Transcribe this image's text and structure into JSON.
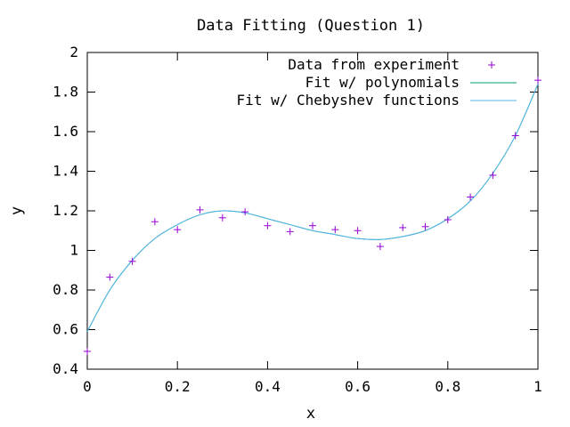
{
  "chart_data": {
    "type": "scatter",
    "title": "Data Fitting (Question 1)",
    "xlabel": "x",
    "ylabel": "y",
    "xlim": [
      0,
      1
    ],
    "ylim": [
      0.4,
      2
    ],
    "x_ticks": [
      0,
      0.2,
      0.4,
      0.6,
      0.8,
      1
    ],
    "x_tick_labels": [
      "0",
      "0.2",
      "0.4",
      "0.6",
      "0.8",
      "1"
    ],
    "y_ticks": [
      0.4,
      0.6,
      0.8,
      1.0,
      1.2,
      1.4,
      1.6,
      1.8,
      2.0
    ],
    "y_tick_labels": [
      "0.4",
      "0.6",
      "0.8",
      "1",
      "1.2",
      "1.4",
      "1.6",
      "1.8",
      "2"
    ],
    "grid": false,
    "legend_position": "top-right",
    "series": [
      {
        "name": "Data from experiment",
        "kind": "points",
        "marker": "plus",
        "color": "#9400d3",
        "x": [
          0,
          0.05,
          0.1,
          0.15,
          0.2,
          0.25,
          0.3,
          0.35,
          0.4,
          0.45,
          0.5,
          0.55,
          0.6,
          0.65,
          0.7,
          0.75,
          0.8,
          0.85,
          0.9,
          0.95,
          1.0
        ],
        "y": [
          0.49,
          0.865,
          0.945,
          1.145,
          1.105,
          1.205,
          1.165,
          1.195,
          1.125,
          1.095,
          1.125,
          1.105,
          1.1,
          1.02,
          1.115,
          1.12,
          1.155,
          1.27,
          1.38,
          1.58,
          1.86
        ]
      },
      {
        "name": "Fit w/ polynomials",
        "kind": "line",
        "color": "#009e73",
        "x": [
          0,
          0.05,
          0.1,
          0.15,
          0.2,
          0.25,
          0.3,
          0.35,
          0.4,
          0.45,
          0.5,
          0.55,
          0.6,
          0.65,
          0.7,
          0.75,
          0.8,
          0.85,
          0.9,
          0.95,
          1.0
        ],
        "y": [
          0.59,
          0.8,
          0.95,
          1.06,
          1.13,
          1.18,
          1.2,
          1.19,
          1.16,
          1.13,
          1.1,
          1.08,
          1.06,
          1.055,
          1.07,
          1.1,
          1.16,
          1.25,
          1.39,
          1.58,
          1.84
        ]
      },
      {
        "name": "Fit w/ Chebyshev functions",
        "kind": "line",
        "color": "#56b4e9",
        "x": [
          0,
          0.05,
          0.1,
          0.15,
          0.2,
          0.25,
          0.3,
          0.35,
          0.4,
          0.45,
          0.5,
          0.55,
          0.6,
          0.65,
          0.7,
          0.75,
          0.8,
          0.85,
          0.9,
          0.95,
          1.0
        ],
        "y": [
          0.59,
          0.8,
          0.95,
          1.06,
          1.13,
          1.18,
          1.2,
          1.19,
          1.16,
          1.13,
          1.1,
          1.08,
          1.06,
          1.055,
          1.07,
          1.1,
          1.16,
          1.25,
          1.39,
          1.58,
          1.84
        ]
      }
    ]
  }
}
